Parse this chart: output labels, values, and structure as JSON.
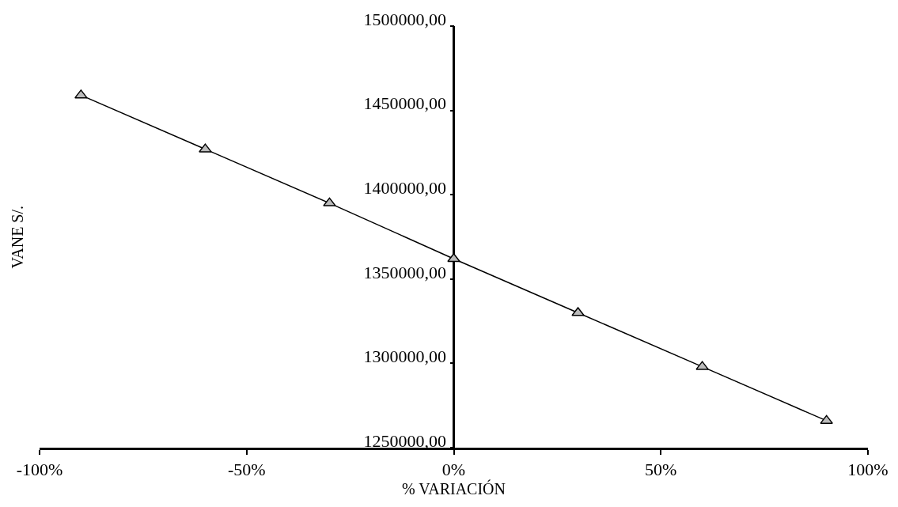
{
  "chart_data": {
    "type": "line",
    "xlabel": "% VARIACIÓN",
    "ylabel": "VANE S/.",
    "x": [
      -90,
      -60,
      -30,
      0,
      30,
      60,
      90
    ],
    "series": [
      {
        "color": "#000000",
        "values": [
          1459000,
          1427000,
          1395000,
          1362000,
          1330000,
          1298000,
          1266000
        ]
      }
    ],
    "xlim": [
      -100,
      100
    ],
    "xticks": [
      {
        "value": -100,
        "label": "-100%"
      },
      {
        "value": -50,
        "label": "-50%"
      },
      {
        "value": 0,
        "label": "0%"
      },
      {
        "value": 50,
        "label": "50%"
      },
      {
        "value": 100,
        "label": "100%"
      }
    ],
    "ylim": [
      1250000,
      1500000
    ],
    "yticks": [
      {
        "value": 1250000,
        "label": "1250000,00"
      },
      {
        "value": 1300000,
        "label": "1300000,00"
      },
      {
        "value": 1350000,
        "label": "1350000,00"
      },
      {
        "value": 1400000,
        "label": "1400000,00"
      },
      {
        "value": 1450000,
        "label": "1450000,00"
      },
      {
        "value": 1500000,
        "label": "1500000,00"
      }
    ],
    "marker": "triangle",
    "line_style": "solid"
  }
}
